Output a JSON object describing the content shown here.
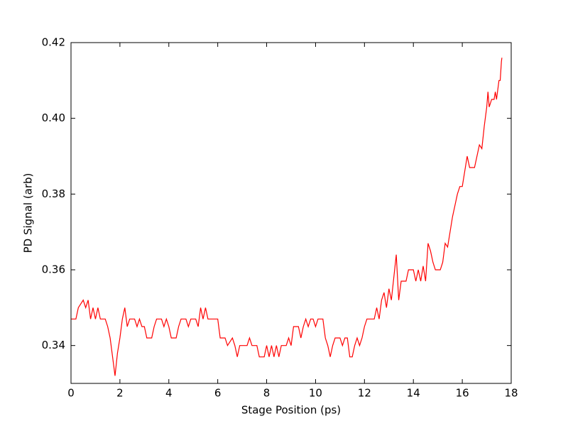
{
  "chart_data": {
    "type": "line",
    "xlabel": "Stage Position (ps)",
    "ylabel": "PD Signal (arb)",
    "xlim": [
      0,
      18
    ],
    "xticks": [
      0,
      2,
      4,
      6,
      8,
      10,
      12,
      14,
      16,
      18
    ],
    "ylim": [
      0.33,
      0.42
    ],
    "yticks": [
      0.34,
      0.36,
      0.38,
      {
        "value": 0.4,
        "label": "0.40"
      },
      0.42
    ],
    "series": [
      {
        "color": "#ff0000",
        "x": [
          0,
          0.2,
          0.3,
          0.5,
          0.6,
          0.7,
          0.8,
          0.9,
          1.0,
          1.1,
          1.2,
          1.4,
          1.5,
          1.6,
          1.7,
          1.8,
          1.9,
          2.0,
          2.1,
          2.2,
          2.3,
          2.4,
          2.6,
          2.7,
          2.8,
          2.9,
          3.0,
          3.1,
          3.3,
          3.4,
          3.5,
          3.7,
          3.8,
          3.9,
          4.0,
          4.1,
          4.3,
          4.4,
          4.5,
          4.7,
          4.8,
          4.9,
          5.1,
          5.2,
          5.3,
          5.4,
          5.5,
          5.6,
          6.0,
          6.1,
          6.3,
          6.4,
          6.6,
          6.7,
          6.8,
          6.9,
          7.2,
          7.3,
          7.4,
          7.6,
          7.7,
          7.9,
          8.0,
          8.1,
          8.2,
          8.3,
          8.4,
          8.5,
          8.6,
          8.8,
          8.9,
          9.0,
          9.1,
          9.3,
          9.4,
          9.5,
          9.6,
          9.7,
          9.8,
          9.9,
          10.0,
          10.1,
          10.3,
          10.4,
          10.5,
          10.6,
          10.7,
          10.8,
          11.0,
          11.1,
          11.2,
          11.3,
          11.4,
          11.5,
          11.6,
          11.7,
          11.8,
          11.9,
          12.0,
          12.1,
          12.4,
          12.5,
          12.6,
          12.7,
          12.8,
          12.9,
          13.0,
          13.1,
          13.2,
          13.3,
          13.4,
          13.5,
          13.7,
          13.8,
          14.0,
          14.1,
          14.2,
          14.3,
          14.4,
          14.5,
          14.6,
          14.7,
          14.8,
          14.9,
          15.1,
          15.2,
          15.3,
          15.4,
          15.5,
          15.6,
          15.7,
          15.8,
          15.9,
          16.0,
          16.1,
          16.2,
          16.3,
          16.5,
          16.6,
          16.7,
          16.8,
          16.9,
          17.0,
          17.05,
          17.1,
          17.2,
          17.3,
          17.35,
          17.4,
          17.5,
          17.55,
          17.6,
          17.62
        ],
        "values": [
          0.347,
          0.347,
          0.35,
          0.352,
          0.35,
          0.352,
          0.347,
          0.35,
          0.347,
          0.35,
          0.347,
          0.347,
          0.345,
          0.342,
          0.337,
          0.332,
          0.338,
          0.342,
          0.347,
          0.35,
          0.345,
          0.347,
          0.347,
          0.345,
          0.347,
          0.345,
          0.345,
          0.342,
          0.342,
          0.345,
          0.347,
          0.347,
          0.345,
          0.347,
          0.345,
          0.342,
          0.342,
          0.345,
          0.347,
          0.347,
          0.345,
          0.347,
          0.347,
          0.345,
          0.35,
          0.347,
          0.35,
          0.347,
          0.347,
          0.342,
          0.342,
          0.34,
          0.342,
          0.34,
          0.337,
          0.34,
          0.34,
          0.342,
          0.34,
          0.34,
          0.337,
          0.337,
          0.34,
          0.337,
          0.34,
          0.337,
          0.34,
          0.337,
          0.34,
          0.34,
          0.342,
          0.34,
          0.345,
          0.345,
          0.342,
          0.345,
          0.347,
          0.345,
          0.347,
          0.347,
          0.345,
          0.347,
          0.347,
          0.342,
          0.34,
          0.337,
          0.34,
          0.342,
          0.342,
          0.34,
          0.342,
          0.342,
          0.337,
          0.337,
          0.34,
          0.342,
          0.34,
          0.342,
          0.345,
          0.347,
          0.347,
          0.35,
          0.347,
          0.352,
          0.354,
          0.35,
          0.355,
          0.352,
          0.358,
          0.364,
          0.352,
          0.357,
          0.357,
          0.36,
          0.36,
          0.357,
          0.36,
          0.357,
          0.361,
          0.357,
          0.367,
          0.365,
          0.362,
          0.36,
          0.36,
          0.362,
          0.367,
          0.366,
          0.37,
          0.374,
          0.377,
          0.38,
          0.382,
          0.382,
          0.386,
          0.39,
          0.387,
          0.387,
          0.39,
          0.393,
          0.392,
          0.398,
          0.403,
          0.407,
          0.403,
          0.405,
          0.405,
          0.407,
          0.405,
          0.41,
          0.41,
          0.415,
          0.416
        ]
      }
    ]
  }
}
